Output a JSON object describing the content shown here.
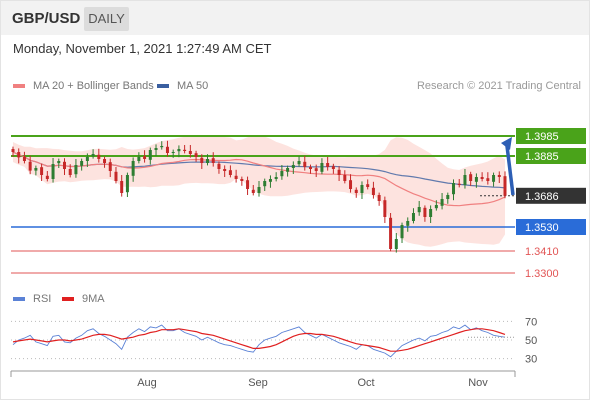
{
  "header": {
    "symbol": "GBP/USD",
    "period": "DAILY"
  },
  "timestamp": "Monday, November 1, 2021 1:27:49 AM CET",
  "legend": {
    "ma20_label": "MA 20 + Bollinger Bands",
    "ma50_label": "MA 50",
    "credit": "Research © 2021 Trading Central",
    "ma20_color": "#f08080",
    "ma50_color": "#3a5fa0",
    "bands_color": "#fde0dc"
  },
  "rsi_legend": {
    "rsi_label": "RSI",
    "ma9_label": "9MA",
    "rsi_color": "#5b82d6",
    "ma9_color": "#e02020"
  },
  "chart_data": [
    {
      "type": "candlestick",
      "ylim": [
        1.324,
        1.414
      ],
      "x_ticks": [
        "Aug",
        "Sep",
        "Oct",
        "Nov"
      ],
      "levels": [
        {
          "value": 1.3985,
          "label": "1.3985",
          "color": "#4aa31a",
          "kind": "resistance"
        },
        {
          "value": 1.3885,
          "label": "1.3885",
          "color": "#4aa31a",
          "kind": "resistance"
        },
        {
          "value": 1.3686,
          "label": "1.3686",
          "color": "#333333",
          "kind": "last-price"
        },
        {
          "value": 1.353,
          "label": "1.3530",
          "color": "#2a6cd8",
          "kind": "pivot"
        },
        {
          "value": 1.341,
          "label": "1.3410",
          "color": "#e25555",
          "kind": "support"
        },
        {
          "value": 1.33,
          "label": "1.3300",
          "color": "#e25555",
          "kind": "support"
        }
      ],
      "forecast_arrow": {
        "from": 1.369,
        "to": 1.3965
      },
      "close": [
        1.3905,
        1.3878,
        1.386,
        1.3812,
        1.3825,
        1.379,
        1.377,
        1.3845,
        1.386,
        1.382,
        1.379,
        1.384,
        1.386,
        1.388,
        1.3895,
        1.387,
        1.385,
        1.381,
        1.376,
        1.37,
        1.379,
        1.386,
        1.388,
        1.387,
        1.3915,
        1.3925,
        1.3935,
        1.39,
        1.3905,
        1.392,
        1.391,
        1.3895,
        1.388,
        1.385,
        1.387,
        1.385,
        1.382,
        1.381,
        1.379,
        1.377,
        1.376,
        1.372,
        1.37,
        1.373,
        1.376,
        1.377,
        1.378,
        1.381,
        1.3825,
        1.384,
        1.386,
        1.383,
        1.382,
        1.381,
        1.385,
        1.383,
        1.382,
        1.379,
        1.376,
        1.372,
        1.37,
        1.374,
        1.373,
        1.369,
        1.366,
        1.358,
        1.342,
        1.347,
        1.354,
        1.356,
        1.36,
        1.363,
        1.358,
        1.362,
        1.364,
        1.367,
        1.369,
        1.375,
        1.374,
        1.379,
        1.376,
        1.378,
        1.377,
        1.376,
        1.379,
        1.378,
        1.3686
      ]
    },
    {
      "type": "line",
      "title": "RSI",
      "ylim": [
        20,
        80
      ],
      "y_ticks": [
        30,
        50,
        70
      ],
      "series": [
        {
          "name": "RSI",
          "values": [
            45,
            50,
            52,
            55,
            48,
            46,
            44,
            54,
            55,
            48,
            47,
            52,
            55,
            60,
            62,
            57,
            54,
            50,
            46,
            40,
            53,
            58,
            62,
            59,
            64,
            63,
            66,
            60,
            60,
            62,
            58,
            56,
            54,
            50,
            53,
            50,
            47,
            45,
            44,
            42,
            40,
            38,
            37,
            45,
            50,
            52,
            54,
            58,
            60,
            62,
            64,
            58,
            55,
            52,
            56,
            53,
            50,
            47,
            45,
            43,
            40,
            45,
            44,
            40,
            38,
            36,
            32,
            38,
            44,
            47,
            50,
            52,
            49,
            54,
            55,
            58,
            60,
            64,
            62,
            66,
            61,
            63,
            60,
            58,
            55,
            54,
            53
          ]
        },
        {
          "name": "9MA",
          "values": [
            48,
            49,
            50,
            51,
            50,
            49,
            48,
            49,
            50,
            50,
            49,
            50,
            51,
            53,
            55,
            56,
            56,
            55,
            53,
            51,
            52,
            53,
            55,
            56,
            58,
            59,
            61,
            61,
            61,
            62,
            61,
            60,
            59,
            57,
            56,
            55,
            53,
            51,
            49,
            47,
            45,
            43,
            41,
            41,
            42,
            43,
            45,
            48,
            51,
            54,
            56,
            57,
            57,
            56,
            56,
            55,
            54,
            52,
            50,
            48,
            46,
            45,
            44,
            43,
            42,
            40,
            38,
            38,
            39,
            40,
            42,
            44,
            46,
            48,
            50,
            52,
            54,
            56,
            58,
            60,
            61,
            62,
            62,
            61,
            60,
            58,
            56
          ]
        }
      ]
    }
  ]
}
